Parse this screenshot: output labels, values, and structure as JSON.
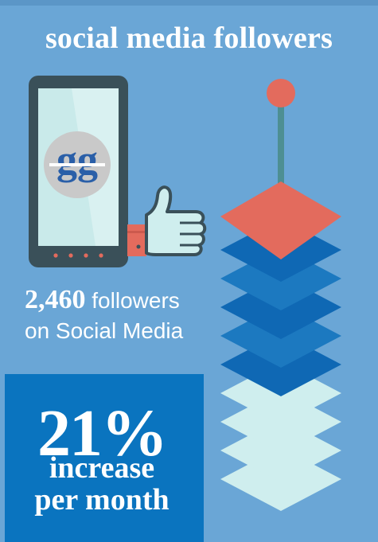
{
  "title": "social media followers",
  "logo_text": "gg",
  "followers": {
    "count": "2,460",
    "label_line1": "followers",
    "label_line2": "on Social Media"
  },
  "growth": {
    "value": "21%",
    "caption_line1": "increase",
    "caption_line2": "per month"
  },
  "colors": {
    "background": "#6aa6d6",
    "stat_box": "#0a74bf",
    "accent_coral": "#e36b5d",
    "chevron_dark": "#0f68b4",
    "chevron_mid": "#1c79c0",
    "chevron_light": "#cfeeee"
  },
  "icons": [
    "smartphone-icon",
    "thumbs-up-icon",
    "stacked-chevrons-icon"
  ]
}
